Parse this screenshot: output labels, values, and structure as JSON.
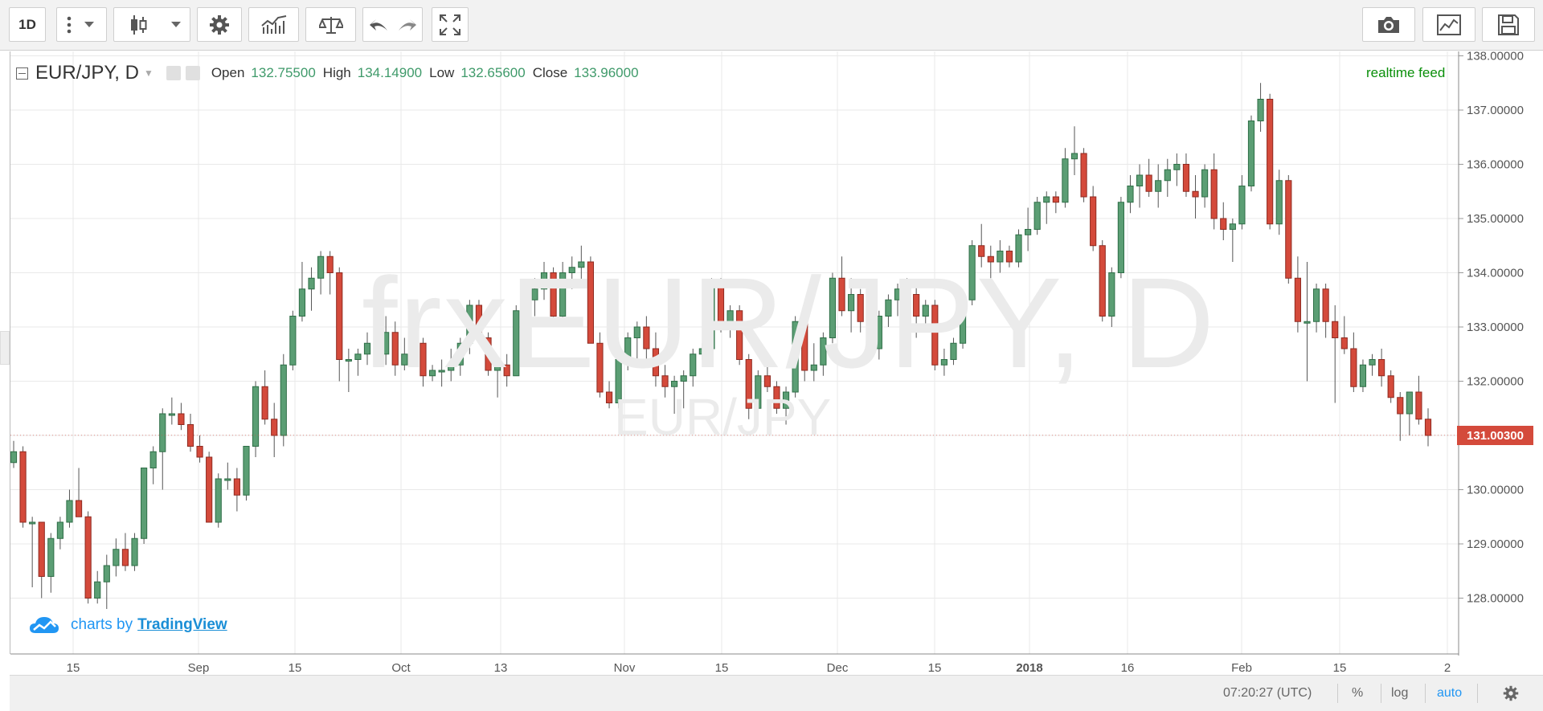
{
  "toolbar": {
    "interval_label": "1D",
    "icons": [
      "more-vertical-icon",
      "dropdown-caret-icon",
      "candles-icon",
      "dropdown-caret-icon",
      "gear-icon",
      "indicators-icon",
      "compare-scales-icon",
      "undo-icon",
      "redo-icon",
      "fullscreen-icon",
      "camera-icon",
      "chart-properties-icon",
      "save-icon"
    ]
  },
  "legend": {
    "symbol": "EUR/JPY, D",
    "open_label": "Open",
    "open_value": "132.75500",
    "high_label": "High",
    "high_value": "134.14900",
    "low_label": "Low",
    "low_value": "132.65600",
    "close_label": "Close",
    "close_value": "133.96000"
  },
  "realtime_feed": "realtime feed",
  "watermark": {
    "main": "frxEUR/JPY, D",
    "sub": "EUR/JPY"
  },
  "branding": {
    "prefix": "charts by",
    "link": "TradingView"
  },
  "footer": {
    "time": "07:20:27 (UTC)",
    "percent": "%",
    "log": "log",
    "auto": "auto"
  },
  "colors": {
    "up": "#5b9e74",
    "down": "#d44a3b",
    "grid": "#e9e9e9",
    "accent": "#2196f3"
  },
  "chart_data": {
    "type": "candlestick",
    "title": "EUR/JPY, D",
    "y_axis_ticks": [
      "128.00000",
      "129.00000",
      "130.00000",
      "131.00000",
      "132.00000",
      "133.00000",
      "134.00000",
      "135.00000",
      "136.00000",
      "137.00000",
      "138.00000"
    ],
    "x_axis_ticks": [
      "15",
      "Sep",
      "15",
      "Oct",
      "13",
      "Nov",
      "15",
      "Dec",
      "15",
      "2018",
      "16",
      "Feb",
      "15",
      "2"
    ],
    "ylim": [
      127.0,
      138.0
    ],
    "last_price": "131.00300",
    "candles": [
      [
        130.5,
        130.9,
        130.4,
        130.7
      ],
      [
        130.7,
        130.8,
        129.3,
        129.4
      ],
      [
        129.4,
        129.5,
        128.2,
        129.4
      ],
      [
        129.4,
        129.4,
        128.0,
        128.4
      ],
      [
        128.4,
        129.2,
        128.1,
        129.1
      ],
      [
        129.1,
        129.5,
        128.9,
        129.4
      ],
      [
        129.4,
        130.0,
        129.3,
        129.8
      ],
      [
        129.8,
        130.4,
        129.5,
        129.5
      ],
      [
        129.5,
        129.6,
        127.9,
        128.0
      ],
      [
        128.0,
        128.5,
        127.9,
        128.3
      ],
      [
        128.3,
        128.8,
        127.8,
        128.6
      ],
      [
        128.6,
        129.1,
        128.4,
        128.9
      ],
      [
        128.9,
        129.2,
        128.5,
        128.6
      ],
      [
        128.6,
        129.2,
        128.5,
        129.1
      ],
      [
        129.1,
        130.4,
        129.0,
        130.4
      ],
      [
        130.4,
        130.8,
        130.1,
        130.7
      ],
      [
        130.7,
        131.5,
        130.0,
        131.4
      ],
      [
        131.4,
        131.7,
        131.2,
        131.4
      ],
      [
        131.4,
        131.6,
        131.1,
        131.2
      ],
      [
        131.2,
        131.4,
        130.7,
        130.8
      ],
      [
        130.8,
        131.0,
        130.5,
        130.6
      ],
      [
        130.6,
        130.7,
        129.4,
        129.4
      ],
      [
        129.4,
        130.3,
        129.3,
        130.2
      ],
      [
        130.2,
        130.5,
        130.0,
        130.2
      ],
      [
        130.2,
        130.4,
        129.6,
        129.9
      ],
      [
        129.9,
        130.8,
        129.8,
        130.8
      ],
      [
        130.8,
        132.0,
        130.6,
        131.9
      ],
      [
        131.9,
        132.2,
        131.2,
        131.3
      ],
      [
        131.3,
        131.6,
        130.6,
        131.0
      ],
      [
        131.0,
        132.5,
        130.8,
        132.3
      ],
      [
        132.3,
        133.3,
        132.2,
        133.2
      ],
      [
        133.2,
        134.2,
        133.1,
        133.7
      ],
      [
        133.7,
        134.1,
        133.3,
        133.9
      ],
      [
        133.9,
        134.4,
        133.6,
        134.3
      ],
      [
        134.3,
        134.4,
        133.6,
        134.0
      ],
      [
        134.0,
        134.1,
        132.0,
        132.4
      ],
      [
        132.4,
        132.6,
        131.8,
        132.4
      ],
      [
        132.4,
        132.6,
        132.1,
        132.5
      ],
      [
        132.5,
        132.9,
        132.3,
        132.7
      ],
      [
        132.7,
        133.0,
        132.4,
        132.5
      ],
      [
        132.5,
        133.2,
        132.3,
        132.9
      ],
      [
        132.9,
        133.1,
        132.1,
        132.3
      ],
      [
        132.3,
        132.8,
        132.2,
        132.5
      ],
      [
        132.5,
        132.8,
        132.3,
        132.7
      ],
      [
        132.7,
        132.8,
        131.9,
        132.1
      ],
      [
        132.1,
        132.3,
        132.0,
        132.2
      ],
      [
        132.2,
        132.4,
        131.9,
        132.2
      ],
      [
        132.2,
        132.6,
        132.0,
        132.3
      ],
      [
        132.3,
        132.8,
        132.1,
        132.7
      ],
      [
        132.7,
        133.5,
        132.5,
        133.4
      ],
      [
        133.4,
        133.5,
        132.8,
        132.8
      ],
      [
        132.8,
        132.9,
        132.1,
        132.2
      ],
      [
        132.2,
        132.4,
        131.7,
        132.3
      ],
      [
        132.3,
        132.5,
        131.9,
        132.1
      ],
      [
        132.1,
        133.4,
        132.1,
        133.3
      ],
      [
        133.3,
        133.6,
        132.8,
        133.5
      ],
      [
        133.5,
        133.9,
        133.2,
        133.7
      ],
      [
        133.7,
        134.2,
        133.5,
        134.0
      ],
      [
        134.0,
        134.1,
        133.1,
        133.2
      ],
      [
        133.2,
        134.2,
        133.1,
        134.0
      ],
      [
        134.0,
        134.3,
        133.7,
        134.1
      ],
      [
        134.1,
        134.5,
        133.8,
        134.2
      ],
      [
        134.2,
        134.3,
        132.7,
        132.7
      ],
      [
        132.7,
        132.9,
        131.7,
        131.8
      ],
      [
        131.8,
        132.0,
        131.5,
        131.6
      ],
      [
        131.6,
        132.5,
        131.5,
        132.4
      ],
      [
        132.4,
        132.9,
        132.2,
        132.8
      ],
      [
        132.8,
        133.1,
        132.4,
        133.0
      ],
      [
        133.0,
        133.2,
        132.4,
        132.6
      ],
      [
        132.6,
        132.9,
        131.9,
        132.1
      ],
      [
        132.1,
        132.3,
        131.7,
        131.9
      ],
      [
        131.9,
        132.1,
        131.4,
        132.0
      ],
      [
        132.0,
        132.2,
        131.5,
        132.1
      ],
      [
        132.1,
        132.6,
        131.9,
        132.5
      ],
      [
        132.5,
        132.7,
        132.4,
        132.6
      ],
      [
        132.6,
        133.9,
        132.5,
        133.8
      ],
      [
        133.8,
        133.9,
        132.9,
        133.0
      ],
      [
        133.0,
        133.4,
        132.8,
        133.3
      ],
      [
        133.3,
        133.4,
        132.3,
        132.4
      ],
      [
        132.4,
        132.5,
        131.3,
        131.5
      ],
      [
        131.5,
        132.2,
        131.3,
        132.1
      ],
      [
        132.1,
        132.3,
        131.8,
        131.9
      ],
      [
        131.9,
        132.0,
        131.4,
        131.5
      ],
      [
        131.5,
        131.9,
        131.2,
        131.8
      ],
      [
        131.8,
        133.2,
        131.7,
        133.1
      ],
      [
        133.1,
        133.2,
        132.0,
        132.2
      ],
      [
        132.2,
        132.7,
        132.0,
        132.3
      ],
      [
        132.3,
        132.9,
        132.1,
        132.8
      ],
      [
        132.8,
        134.0,
        132.7,
        133.9
      ],
      [
        133.9,
        134.3,
        133.2,
        133.3
      ],
      [
        133.3,
        133.9,
        132.9,
        133.6
      ],
      [
        133.6,
        133.7,
        132.9,
        133.1
      ],
      [
        133.1,
        133.4,
        132.5,
        132.6
      ],
      [
        132.6,
        133.3,
        132.4,
        133.2
      ],
      [
        133.2,
        133.6,
        133.0,
        133.5
      ],
      [
        133.5,
        133.8,
        133.2,
        133.7
      ],
      [
        133.7,
        133.9,
        133.3,
        133.6
      ],
      [
        133.6,
        133.8,
        132.8,
        133.2
      ],
      [
        133.2,
        133.5,
        133.0,
        133.4
      ],
      [
        133.4,
        133.5,
        132.2,
        132.3
      ],
      [
        132.3,
        132.6,
        132.1,
        132.4
      ],
      [
        132.4,
        132.8,
        132.3,
        132.7
      ],
      [
        132.7,
        133.6,
        132.6,
        133.5
      ],
      [
        133.5,
        134.6,
        133.4,
        134.5
      ],
      [
        134.5,
        134.9,
        134.1,
        134.3
      ],
      [
        134.3,
        134.5,
        133.9,
        134.2
      ],
      [
        134.2,
        134.6,
        134.0,
        134.4
      ],
      [
        134.4,
        134.5,
        134.1,
        134.2
      ],
      [
        134.2,
        134.8,
        134.1,
        134.7
      ],
      [
        134.7,
        135.2,
        134.4,
        134.8
      ],
      [
        134.8,
        135.4,
        134.7,
        135.3
      ],
      [
        135.3,
        135.5,
        134.9,
        135.4
      ],
      [
        135.4,
        135.5,
        135.1,
        135.3
      ],
      [
        135.3,
        136.3,
        135.2,
        136.1
      ],
      [
        136.1,
        136.7,
        135.8,
        136.2
      ],
      [
        136.2,
        136.3,
        135.3,
        135.4
      ],
      [
        135.4,
        135.6,
        134.4,
        134.5
      ],
      [
        134.5,
        134.6,
        133.1,
        133.2
      ],
      [
        133.2,
        134.1,
        133.0,
        134.0
      ],
      [
        134.0,
        135.4,
        133.9,
        135.3
      ],
      [
        135.3,
        135.8,
        135.1,
        135.6
      ],
      [
        135.6,
        136.0,
        135.2,
        135.8
      ],
      [
        135.8,
        136.1,
        135.4,
        135.5
      ],
      [
        135.5,
        136.0,
        135.2,
        135.7
      ],
      [
        135.7,
        136.1,
        135.4,
        135.9
      ],
      [
        135.9,
        136.2,
        135.6,
        136.0
      ],
      [
        136.0,
        136.2,
        135.4,
        135.5
      ],
      [
        135.5,
        135.8,
        135.0,
        135.4
      ],
      [
        135.4,
        136.0,
        135.2,
        135.9
      ],
      [
        135.9,
        136.2,
        134.8,
        135.0
      ],
      [
        135.0,
        135.3,
        134.6,
        134.8
      ],
      [
        134.8,
        135.0,
        134.2,
        134.9
      ],
      [
        134.9,
        135.8,
        134.8,
        135.6
      ],
      [
        135.6,
        136.9,
        135.5,
        136.8
      ],
      [
        136.8,
        137.5,
        136.6,
        137.2
      ],
      [
        137.2,
        137.3,
        134.8,
        134.9
      ],
      [
        134.9,
        135.9,
        134.7,
        135.7
      ],
      [
        135.7,
        135.8,
        133.8,
        133.9
      ],
      [
        133.9,
        134.3,
        132.9,
        133.1
      ],
      [
        133.1,
        134.2,
        132.0,
        133.1
      ],
      [
        133.1,
        133.8,
        132.9,
        133.7
      ],
      [
        133.7,
        133.8,
        132.8,
        133.1
      ],
      [
        133.1,
        133.4,
        131.6,
        132.8
      ],
      [
        132.8,
        133.2,
        132.5,
        132.6
      ],
      [
        132.6,
        132.9,
        131.8,
        131.9
      ],
      [
        131.9,
        132.4,
        131.8,
        132.3
      ],
      [
        132.3,
        132.5,
        132.1,
        132.4
      ],
      [
        132.4,
        132.6,
        131.9,
        132.1
      ],
      [
        132.1,
        132.2,
        131.6,
        131.7
      ],
      [
        131.7,
        131.8,
        130.9,
        131.4
      ],
      [
        131.4,
        131.8,
        131.0,
        131.8
      ],
      [
        131.8,
        132.1,
        131.2,
        131.3
      ],
      [
        131.3,
        131.5,
        130.8,
        131.0
      ]
    ]
  }
}
